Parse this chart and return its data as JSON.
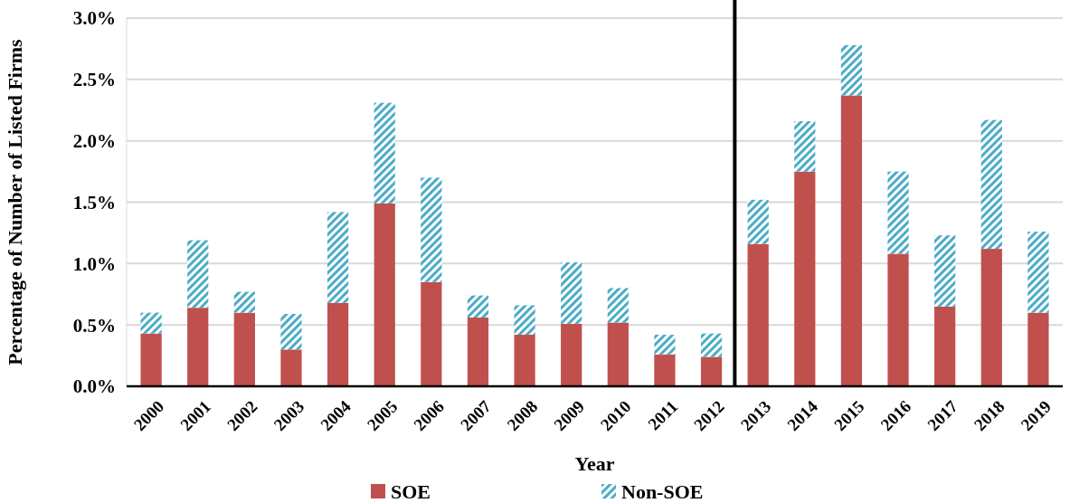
{
  "chart_data": {
    "type": "bar",
    "stacked": true,
    "xlabel": "Year",
    "ylabel": "Percentage of Number of Listed Firms",
    "categories": [
      "2000",
      "2001",
      "2002",
      "2003",
      "2004",
      "2005",
      "2006",
      "2007",
      "2008",
      "2009",
      "2010",
      "2011",
      "2012",
      "2013",
      "2014",
      "2015",
      "2016",
      "2017",
      "2018",
      "2019"
    ],
    "series": [
      {
        "name": "SOE",
        "color": "#c0504d",
        "values": [
          0.43,
          0.64,
          0.6,
          0.3,
          0.68,
          1.49,
          0.85,
          0.56,
          0.42,
          0.51,
          0.52,
          0.26,
          0.24,
          1.16,
          1.75,
          2.37,
          1.08,
          0.65,
          1.12,
          0.6
        ]
      },
      {
        "name": "Non-SOE",
        "color": "#4bacc6",
        "values": [
          0.17,
          0.55,
          0.17,
          0.29,
          0.74,
          0.82,
          0.85,
          0.18,
          0.24,
          0.5,
          0.28,
          0.16,
          0.19,
          0.36,
          0.41,
          0.41,
          0.67,
          0.58,
          1.05,
          0.66
        ]
      }
    ],
    "ylim": [
      0,
      3
    ],
    "yticks": [
      {
        "value": 0,
        "label": "0.0%"
      },
      {
        "value": 0.5,
        "label": "0.5%"
      },
      {
        "value": 1,
        "label": "1.0%"
      },
      {
        "value": 1.5,
        "label": "1.5%"
      },
      {
        "value": 2,
        "label": "2.0%"
      },
      {
        "value": 2.5,
        "label": "2.5%"
      },
      {
        "value": 3,
        "label": "3.0%"
      }
    ],
    "grid": "y",
    "legend": "bottom",
    "ref_lines": [
      {
        "axis": "x",
        "value": "2013",
        "color": "#000000"
      }
    ]
  }
}
